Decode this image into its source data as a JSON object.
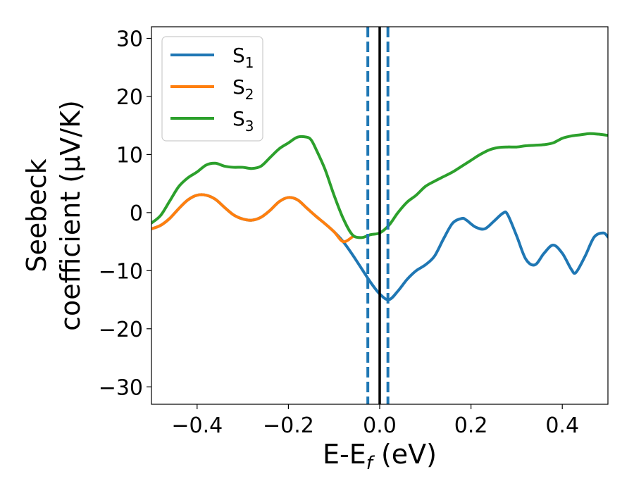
{
  "chart_data": {
    "type": "line",
    "title": "",
    "xlabel": "E-E",
    "xlabel_sub": "f",
    "xlabel_unit": " (eV)",
    "ylabel_line1": "Seebeck",
    "ylabel_line2": "coefficient  (μV/K)",
    "xlim": [
      -0.5,
      0.5
    ],
    "ylim": [
      -33,
      32
    ],
    "xticks": [
      -0.4,
      -0.2,
      0.0,
      0.2,
      0.4
    ],
    "xtick_labels": [
      "−0.4",
      "−0.2",
      "0.0",
      "0.2",
      "0.4"
    ],
    "yticks": [
      -30,
      -20,
      -10,
      0,
      10,
      20,
      30
    ],
    "ytick_labels": [
      "−30",
      "−20",
      "−10",
      "0",
      "10",
      "20",
      "30"
    ],
    "grid": false,
    "legend_position": "top-left",
    "vlines": [
      {
        "x": 0.0,
        "color": "#000000",
        "style": "solid"
      },
      {
        "x": -0.026,
        "color": "#1f77b4",
        "style": "dashed"
      },
      {
        "x": 0.018,
        "color": "#1f77b4",
        "style": "dashed"
      }
    ],
    "series": [
      {
        "name": "S",
        "sub": "1",
        "color": "#1f77b4",
        "x": [
          -0.5,
          -0.48,
          -0.46,
          -0.44,
          -0.42,
          -0.4,
          -0.38,
          -0.36,
          -0.34,
          -0.32,
          -0.3,
          -0.28,
          -0.26,
          -0.24,
          -0.22,
          -0.2,
          -0.18,
          -0.16,
          -0.14,
          -0.12,
          -0.1,
          -0.08,
          -0.06,
          -0.04,
          -0.02,
          0.0,
          0.02,
          0.04,
          0.06,
          0.08,
          0.1,
          0.12,
          0.14,
          0.16,
          0.18,
          0.19,
          0.21,
          0.23,
          0.25,
          0.27,
          0.28,
          0.3,
          0.32,
          0.34,
          0.36,
          0.38,
          0.4,
          0.42,
          0.43,
          0.45,
          0.47,
          0.49,
          0.5
        ],
        "y": [
          -2.8,
          -2.2,
          -1.0,
          0.7,
          2.2,
          3.0,
          3.0,
          2.3,
          0.9,
          -0.4,
          -1.1,
          -1.3,
          -0.8,
          0.4,
          1.9,
          2.6,
          2.2,
          0.8,
          -0.6,
          -1.9,
          -3.3,
          -5.0,
          -7.2,
          -9.6,
          -12.0,
          -14.0,
          -15.0,
          -13.5,
          -11.5,
          -10.0,
          -9.0,
          -7.5,
          -4.5,
          -1.8,
          -1.0,
          -1.3,
          -2.5,
          -2.8,
          -1.5,
          -0.1,
          -0.3,
          -4.0,
          -8.0,
          -9.0,
          -7.0,
          -5.6,
          -7.0,
          -9.8,
          -10.3,
          -7.5,
          -4.2,
          -3.5,
          -4.2
        ]
      },
      {
        "name": "S",
        "sub": "2",
        "color": "#ff7f0e",
        "x": [
          -0.5,
          -0.48,
          -0.46,
          -0.44,
          -0.42,
          -0.4,
          -0.38,
          -0.36,
          -0.34,
          -0.32,
          -0.3,
          -0.28,
          -0.26,
          -0.24,
          -0.22,
          -0.2,
          -0.18,
          -0.16,
          -0.14,
          -0.12,
          -0.1,
          -0.08,
          -0.06
        ],
        "y": [
          -2.8,
          -2.2,
          -1.0,
          0.7,
          2.2,
          3.0,
          3.0,
          2.3,
          0.9,
          -0.4,
          -1.1,
          -1.3,
          -0.8,
          0.4,
          1.9,
          2.6,
          2.2,
          0.8,
          -0.6,
          -1.9,
          -3.3,
          -5.0,
          -4.2
        ]
      },
      {
        "name": "S",
        "sub": "3",
        "color": "#2ca02c",
        "x": [
          -0.5,
          -0.48,
          -0.46,
          -0.44,
          -0.42,
          -0.4,
          -0.38,
          -0.36,
          -0.34,
          -0.32,
          -0.3,
          -0.28,
          -0.26,
          -0.24,
          -0.22,
          -0.2,
          -0.18,
          -0.16,
          -0.15,
          -0.14,
          -0.12,
          -0.1,
          -0.08,
          -0.06,
          -0.04,
          -0.02,
          0.0,
          0.02,
          0.04,
          0.06,
          0.08,
          0.1,
          0.12,
          0.14,
          0.16,
          0.18,
          0.2,
          0.22,
          0.24,
          0.26,
          0.28,
          0.3,
          0.32,
          0.34,
          0.36,
          0.38,
          0.4,
          0.42,
          0.44,
          0.46,
          0.48,
          0.5
        ],
        "y": [
          -1.8,
          -0.5,
          2.0,
          4.5,
          6.0,
          7.0,
          8.2,
          8.5,
          8.0,
          7.8,
          7.8,
          7.6,
          8.0,
          9.5,
          11.0,
          12.0,
          13.0,
          13.0,
          12.5,
          11.0,
          7.5,
          3.0,
          -1.0,
          -3.8,
          -4.3,
          -3.8,
          -3.5,
          -2.2,
          0.0,
          1.8,
          3.0,
          4.5,
          5.4,
          6.2,
          7.0,
          8.0,
          9.0,
          10.0,
          10.8,
          11.2,
          11.3,
          11.3,
          11.5,
          11.6,
          11.7,
          12.0,
          12.8,
          13.2,
          13.4,
          13.6,
          13.5,
          13.3
        ]
      }
    ]
  }
}
